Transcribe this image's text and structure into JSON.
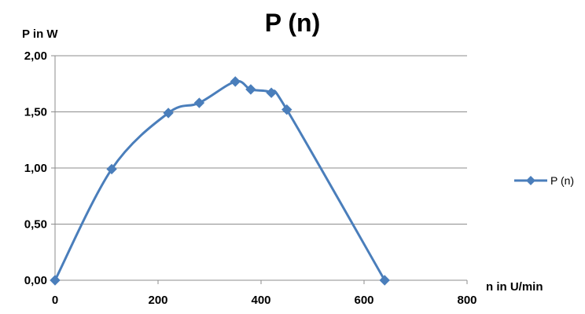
{
  "chart_data": {
    "type": "line",
    "title": "P (n)",
    "xlabel": "n in U/min",
    "ylabel": "P in W",
    "xlim": [
      0,
      800
    ],
    "ylim": [
      0,
      2.0
    ],
    "x_ticks": [
      0,
      200,
      400,
      600,
      800
    ],
    "x_tick_labels": [
      "0",
      "200",
      "400",
      "600",
      "800"
    ],
    "y_ticks": [
      0,
      0.5,
      1.0,
      1.5,
      2.0
    ],
    "y_tick_labels": [
      "0,00",
      "0,50",
      "1,00",
      "1,50",
      "2,00"
    ],
    "grid": "horizontal",
    "legend_position": "right",
    "smooth": true,
    "marker": "diamond",
    "series": [
      {
        "name": "P (n)",
        "color": "#4A7EBB",
        "x": [
          0,
          110,
          220,
          280,
          350,
          380,
          420,
          450,
          640
        ],
        "y": [
          0,
          0.99,
          1.49,
          1.58,
          1.77,
          1.7,
          1.67,
          1.52,
          0
        ]
      }
    ]
  }
}
